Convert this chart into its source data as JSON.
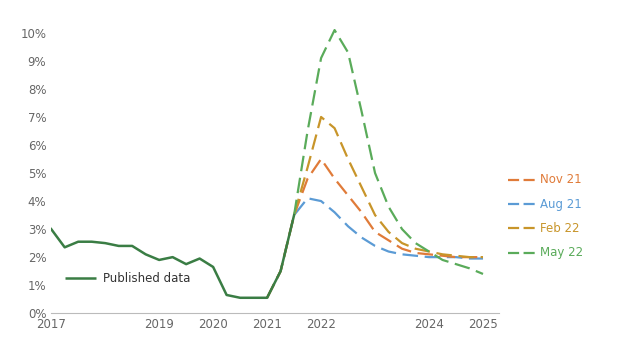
{
  "published_data": {
    "x": [
      2017.0,
      2017.25,
      2017.5,
      2017.75,
      2018.0,
      2018.25,
      2018.5,
      2018.75,
      2019.0,
      2019.25,
      2019.5,
      2019.75,
      2020.0,
      2020.25,
      2020.5,
      2020.75,
      2021.0,
      2021.25,
      2021.5
    ],
    "y": [
      3.0,
      2.35,
      2.55,
      2.55,
      2.5,
      2.4,
      2.4,
      2.1,
      1.9,
      2.0,
      1.75,
      1.95,
      1.65,
      0.65,
      0.55,
      0.55,
      0.55,
      1.5,
      3.5
    ],
    "color": "#3a7d44",
    "label": "Published data"
  },
  "nov21": {
    "x": [
      2021.0,
      2021.25,
      2021.5,
      2021.75,
      2022.0,
      2022.25,
      2022.5,
      2022.75,
      2023.0,
      2023.25,
      2023.5,
      2023.75,
      2024.0,
      2024.25,
      2024.5,
      2024.75,
      2025.0
    ],
    "y": [
      0.55,
      1.5,
      3.5,
      4.8,
      5.5,
      4.8,
      4.2,
      3.6,
      2.9,
      2.6,
      2.3,
      2.15,
      2.1,
      2.05,
      2.0,
      2.0,
      2.0
    ],
    "color": "#e07b39",
    "label": "Nov 21"
  },
  "aug21": {
    "x": [
      2021.0,
      2021.25,
      2021.5,
      2021.75,
      2022.0,
      2022.25,
      2022.5,
      2022.75,
      2023.0,
      2023.25,
      2023.5,
      2023.75,
      2024.0,
      2024.25,
      2024.5,
      2024.75,
      2025.0
    ],
    "y": [
      0.55,
      1.5,
      3.5,
      4.1,
      4.0,
      3.6,
      3.1,
      2.7,
      2.4,
      2.2,
      2.1,
      2.05,
      2.0,
      2.0,
      2.0,
      1.95,
      1.95
    ],
    "color": "#5b9bd5",
    "label": "Aug 21"
  },
  "feb22": {
    "x": [
      2021.0,
      2021.25,
      2021.5,
      2021.75,
      2022.0,
      2022.25,
      2022.5,
      2022.75,
      2023.0,
      2023.25,
      2023.5,
      2023.75,
      2024.0,
      2024.25,
      2024.5,
      2024.75,
      2025.0
    ],
    "y": [
      0.55,
      1.5,
      3.5,
      5.2,
      7.0,
      6.6,
      5.5,
      4.5,
      3.5,
      2.9,
      2.5,
      2.3,
      2.2,
      2.1,
      2.05,
      2.0,
      2.0
    ],
    "color": "#c8952a",
    "label": "Feb 22"
  },
  "may22": {
    "x": [
      2021.5,
      2021.75,
      2022.0,
      2022.25,
      2022.5,
      2022.75,
      2023.0,
      2023.25,
      2023.5,
      2023.75,
      2024.0,
      2024.25,
      2024.5,
      2024.75,
      2025.0
    ],
    "y": [
      3.5,
      6.5,
      9.1,
      10.1,
      9.3,
      7.2,
      5.0,
      3.8,
      3.0,
      2.5,
      2.2,
      1.9,
      1.75,
      1.6,
      1.4
    ],
    "color": "#5aab5a",
    "label": "May 22"
  },
  "xlim": [
    2017.0,
    2025.3
  ],
  "ylim": [
    0.0,
    10.8
  ],
  "yticks": [
    0,
    1,
    2,
    3,
    4,
    5,
    6,
    7,
    8,
    9,
    10
  ],
  "xticks": [
    2017,
    2019,
    2020,
    2021,
    2022,
    2024,
    2025
  ],
  "background_color": "#ffffff",
  "legend_entries": [
    {
      "key": "nov21",
      "label": "Nov 21",
      "color": "#e07b39"
    },
    {
      "key": "aug21",
      "label": "Aug 21",
      "color": "#5b9bd5"
    },
    {
      "key": "feb22",
      "label": "Feb 22",
      "color": "#c8952a"
    },
    {
      "key": "may22",
      "label": "May 22",
      "color": "#5aab5a"
    }
  ]
}
